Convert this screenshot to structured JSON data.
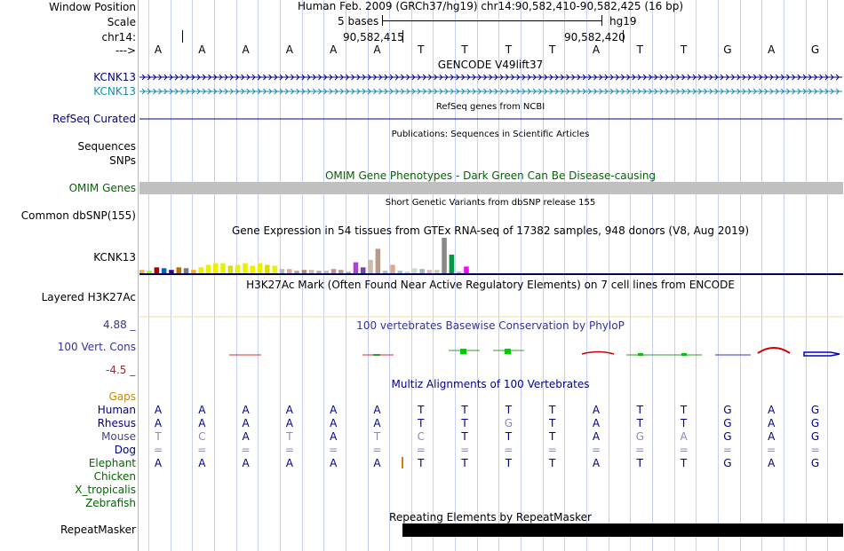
{
  "position": {
    "window_position_label": "Window Position",
    "scale_label": "Scale",
    "chrom_label": "chr14:",
    "arrow_label": "--->",
    "title_text": "Human Feb. 2009 (GRCh37/hg19)   chr14:90,582,410-90,582,425 (16 bp)",
    "scale_text": "5 bases",
    "assembly": "hg19",
    "coord_left": "90,582,415",
    "coord_right": "90,582,420"
  },
  "reference_bases": [
    "A",
    "A",
    "A",
    "A",
    "A",
    "A",
    "T",
    "T",
    "T",
    "T",
    "A",
    "T",
    "T",
    "G",
    "A",
    "G"
  ],
  "tracks": {
    "gencode": {
      "title": "GENCODE V49lift37",
      "gene1": "KCNK13",
      "gene2": "KCNK13"
    },
    "refseq": {
      "title": "RefSeq genes from NCBI",
      "label": "RefSeq Curated"
    },
    "publications": {
      "title": "Publications: Sequences in Scientific Articles",
      "label": "Sequences"
    },
    "snps_label": "SNPs",
    "omim": {
      "title": "OMIM Gene Phenotypes - Dark Green Can Be Disease-causing",
      "label": "OMIM Genes"
    },
    "dbsnp": {
      "title": "Short Genetic Variants from dbSNP release 155",
      "label": "Common dbSNP(155)"
    },
    "gtex": {
      "title": "Gene Expression in 54 tissues from GTEx RNA-seq of 17382 samples, 948 donors (V8, Aug 2019)",
      "label": "KCNK13",
      "bar_values": [
        4,
        3,
        7,
        6,
        4,
        7,
        6,
        4,
        7,
        10,
        12,
        12,
        9,
        10,
        12,
        9,
        12,
        10,
        9,
        5,
        5,
        3,
        4,
        4,
        3,
        3,
        5,
        4,
        2,
        13,
        7,
        16,
        29,
        3,
        10,
        3,
        2,
        6,
        5,
        4,
        4,
        42,
        22,
        2,
        8
      ],
      "bar_colors": [
        "#ffaa44",
        "#99ff00",
        "#aa0000",
        "#0066bb",
        "#440088",
        "#cc6600",
        "#777777",
        "#ffaa00",
        "#eeee00",
        "#eeee00",
        "#eeee00",
        "#eeee00",
        "#dddd00",
        "#eeee00",
        "#eeee00",
        "#eeee00",
        "#eeee00",
        "#dddd00",
        "#eeee00",
        "#bbbbbb",
        "#ddaa99",
        "#cc9988",
        "#bb8877",
        "#ccbbaa",
        "#bbaa99",
        "#ccbbaa",
        "#cc8899",
        "#bb9988",
        "#ccaaaa",
        "#aa44cc",
        "#7744aa",
        "#ccbbaa",
        "#bb9988",
        "#99ccbb",
        "#ddaa88",
        "#88cccc",
        "#bbddbb",
        "#ccddcc",
        "#99bbbb",
        "#ddbbbb",
        "#ccccaa",
        "#888888",
        "#009944",
        "#bbbbbb",
        "#ff00ff"
      ]
    },
    "h3k27ac": {
      "title": "H3K27Ac Mark (Often Found Near Active Regulatory Elements) on 7 cell lines from ENCODE",
      "label": "Layered H3K27Ac"
    },
    "conservation": {
      "title": "100 vertebrates Basewise Conservation by PhyloP",
      "label": "100 Vert. Cons",
      "ymax": "4.88 _",
      "ymin": "-4.5 _"
    },
    "multiz": {
      "title": "Multiz Alignments of 100 Vertebrates",
      "gaps_label": "Gaps",
      "species": [
        {
          "name": "Human",
          "color": "#000088",
          "bases": [
            "A",
            "A",
            "A",
            "A",
            "A",
            "A",
            "T",
            "T",
            "T",
            "T",
            "A",
            "T",
            "T",
            "G",
            "A",
            "G"
          ]
        },
        {
          "name": "Rhesus",
          "color": "#000088",
          "bases": [
            "A",
            "A",
            "A",
            "A",
            "A",
            "A",
            "T",
            "T",
            "G",
            "T",
            "A",
            "T",
            "T",
            "G",
            "A",
            "G"
          ]
        },
        {
          "name": "Mouse",
          "color": "#444488",
          "bases": [
            "T",
            "C",
            "A",
            "T",
            "A",
            "T",
            "C",
            "T",
            "T",
            "T",
            "A",
            "G",
            "A",
            "G",
            "A",
            "G"
          ]
        },
        {
          "name": "Dog",
          "color": "#000088",
          "bases": [
            "=",
            "=",
            "=",
            "=",
            "=",
            "=",
            "=",
            "=",
            "=",
            "=",
            "=",
            "=",
            "=",
            "=",
            "=",
            "="
          ]
        },
        {
          "name": "Elephant",
          "color": "#006600",
          "bases": [
            "A",
            "A",
            "A",
            "A",
            "A",
            "A",
            "T",
            "T",
            "T",
            "T",
            "A",
            "T",
            "T",
            "G",
            "A",
            "G"
          ]
        },
        {
          "name": "Chicken",
          "color": "#006600",
          "bases": []
        },
        {
          "name": "X_tropicalis",
          "color": "#006600",
          "bases": []
        },
        {
          "name": "Zebrafish",
          "color": "#006600",
          "bases": []
        }
      ]
    },
    "repeatmasker": {
      "title": "Repeating Elements by RepeatMasker",
      "label": "RepeatMasker"
    }
  },
  "colors": {
    "gene_blue": "#000088",
    "gene_teal": "#1b8bb0",
    "omim_green": "#006600",
    "omim_bar": "#c0c0c0",
    "cons_blue": "#333399",
    "cons_red": "#883333",
    "gaps_orange": "#cc8800",
    "guide": "#c8cff4"
  }
}
